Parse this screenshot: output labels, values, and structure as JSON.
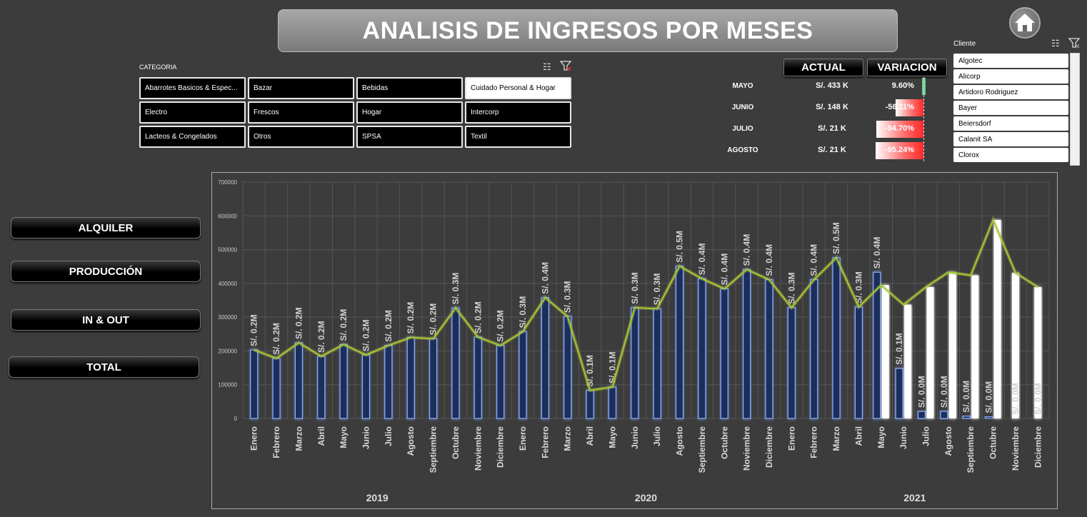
{
  "title": "ANALISIS DE INGRESOS POR MESES",
  "icons": {
    "home": "home-icon",
    "multi_select": "multi-select-icon",
    "clear_filter": "clear-filter-icon"
  },
  "categoria": {
    "label": "CATEGORIA",
    "items": [
      {
        "label": "Abarrotes Basicos & Espec...",
        "selected": false
      },
      {
        "label": "Bazar",
        "selected": false
      },
      {
        "label": "Bebidas",
        "selected": false
      },
      {
        "label": "Cuidado Personal & Hogar",
        "selected": true
      },
      {
        "label": "Electro",
        "selected": false
      },
      {
        "label": "Frescos",
        "selected": false
      },
      {
        "label": "Hogar",
        "selected": false
      },
      {
        "label": "Intercorp",
        "selected": false
      },
      {
        "label": "Lacteos & Congelados",
        "selected": false
      },
      {
        "label": "Otros",
        "selected": false
      },
      {
        "label": "SPSA",
        "selected": false
      },
      {
        "label": "Textil",
        "selected": false
      }
    ]
  },
  "kpi": {
    "actual_label": "ACTUAL",
    "variacion_label": "VARIACION",
    "rows": [
      {
        "month": "MAYO",
        "actual": "S/. 433 K",
        "variacion": "9.60%",
        "var_value": 9.6
      },
      {
        "month": "JUNIO",
        "actual": "S/. 148 K",
        "variacion": "-56.11%",
        "var_value": -56.11
      },
      {
        "month": "JULIO",
        "actual": "S/. 21 K",
        "variacion": "-94.70%",
        "var_value": -94.7
      },
      {
        "month": "AGOSTO",
        "actual": "S/. 21 K",
        "variacion": "-95.24%",
        "var_value": -95.24
      }
    ]
  },
  "cliente": {
    "label": "Cliente",
    "items": [
      "Algotec",
      "Alicorp",
      "Artidoro Rodriguez",
      "Bayer",
      "Beiersdorf",
      "Calanit SA",
      "Clorox"
    ]
  },
  "nav_buttons": [
    "ALQUILER",
    "PRODUCCIÓN",
    "IN & OUT",
    "TOTAL"
  ],
  "colors": {
    "background": "#3c3c3c",
    "bar_actual": "#1f2d5a",
    "bar_actual_edge": "#8fb0ff",
    "bar_prev": "#ffffff",
    "line": "#9acd32",
    "neg_var": "#ff2a2a",
    "pos_var": "#6fcf8f"
  },
  "chart_data": {
    "type": "bar",
    "ylim": [
      0,
      700000
    ],
    "yticks": [
      0,
      100000,
      200000,
      300000,
      400000,
      500000,
      600000,
      700000
    ],
    "grid": true,
    "categories": [
      "Enero",
      "Febrero",
      "Marzo",
      "Abril",
      "Mayo",
      "Junio",
      "Julio",
      "Agosto",
      "Septiembre",
      "Octubre",
      "Noviembre",
      "Diciembre",
      "Enero",
      "Febrero",
      "Marzo",
      "Abril",
      "Mayo",
      "Junio",
      "Julio",
      "Agosto",
      "Septiembre",
      "Octubre",
      "Noviembre",
      "Diciembre",
      "Enero",
      "Febrero",
      "Marzo",
      "Abril",
      "Mayo",
      "Junio",
      "Julio",
      "Agosto",
      "Septiembre",
      "Octubre",
      "Noviembre",
      "Diciembre"
    ],
    "years": [
      {
        "label": "2019",
        "count": 12
      },
      {
        "label": "2020",
        "count": 12
      },
      {
        "label": "2021",
        "count": 12
      }
    ],
    "series": [
      {
        "values": [
          203000,
          178000,
          224000,
          184000,
          219000,
          188000,
          216000,
          240000,
          236000,
          327000,
          241000,
          216000,
          257000,
          358000,
          302000,
          83000,
          93000,
          328000,
          325000,
          451000,
          414000,
          384000,
          441000,
          411000,
          328000,
          411000,
          476000,
          330000,
          433000,
          148000,
          21000,
          21000,
          7000,
          5000,
          null,
          null
        ],
        "labels": [
          "S/. 0.2M",
          "S/. 0.2M",
          "S/. 0.2M",
          "S/. 0.2M",
          "S/. 0.2M",
          "S/. 0.2M",
          "S/. 0.2M",
          "S/. 0.2M",
          "S/. 0.2M",
          "S/. 0.3M",
          "S/. 0.2M",
          "S/. 0.2M",
          "S/. 0.3M",
          "S/. 0.4M",
          "S/. 0.3M",
          "S/. 0.1M",
          "S/. 0.1M",
          "S/. 0.3M",
          "S/. 0.3M",
          "S/. 0.5M",
          "S/. 0.4M",
          "S/. 0.4M",
          "S/. 0.4M",
          "S/. 0.4M",
          "S/. 0.3M",
          "S/. 0.4M",
          "S/. 0.5M",
          "S/. 0.3M",
          "S/. 0.4M",
          "S/. 0.1M",
          "S/. 0.0M",
          "S/. 0.0M",
          "S/. 0.0M",
          "S/. 0.0M",
          "S/. 0.0M",
          "S/. 0.0M"
        ]
      },
      {
        "values": [
          null,
          null,
          null,
          null,
          null,
          null,
          null,
          null,
          null,
          null,
          null,
          null,
          null,
          null,
          null,
          null,
          null,
          null,
          null,
          null,
          null,
          null,
          null,
          null,
          null,
          null,
          null,
          null,
          395000,
          337000,
          389000,
          433000,
          424000,
          588000,
          431000,
          389000
        ]
      }
    ],
    "line": [
      203000,
      178000,
      224000,
      184000,
      219000,
      188000,
      216000,
      240000,
      236000,
      327000,
      241000,
      216000,
      257000,
      358000,
      302000,
      83000,
      93000,
      328000,
      325000,
      451000,
      414000,
      384000,
      441000,
      411000,
      328000,
      411000,
      476000,
      330000,
      395000,
      337000,
      389000,
      433000,
      424000,
      588000,
      431000,
      389000
    ]
  }
}
